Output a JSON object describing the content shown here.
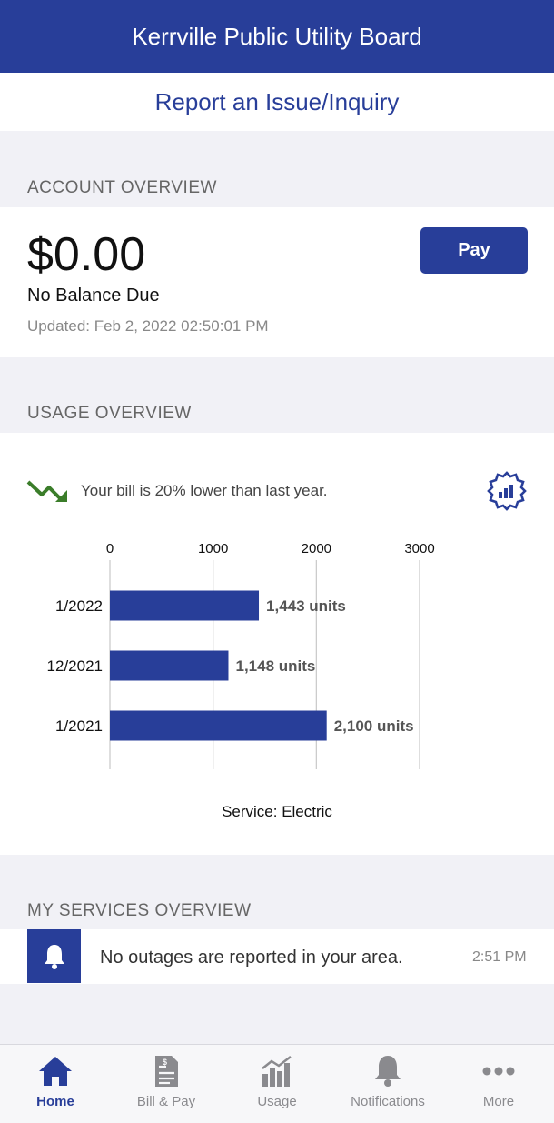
{
  "header": {
    "title": "Kerrville Public Utility Board"
  },
  "report": {
    "label": "Report an Issue/Inquiry"
  },
  "account": {
    "section_title": "ACCOUNT OVERVIEW",
    "amount": "$0.00",
    "balance_label": "No Balance Due",
    "updated": "Updated: Feb 2, 2022 02:50:01 PM",
    "pay_label": "Pay"
  },
  "usage": {
    "section_title": "USAGE OVERVIEW",
    "trend_text": "Your bill is 20% lower than last year.",
    "service_label": "Service: Electric"
  },
  "chart_data": {
    "type": "bar",
    "orientation": "horizontal",
    "categories": [
      "1/2022",
      "12/2021",
      "1/2021"
    ],
    "values": [
      1443,
      1148,
      2100
    ],
    "value_labels": [
      "1,443 units",
      "1,148 units",
      "2,100 units"
    ],
    "x_ticks": [
      "0",
      "1000",
      "2000",
      "3000"
    ],
    "xlim": [
      0,
      3000
    ],
    "grid": true,
    "bar_color": "#283e99"
  },
  "services": {
    "section_title": "MY SERVICES OVERVIEW",
    "message": "No outages are reported in your area.",
    "time": "2:51 PM"
  },
  "tabs": [
    {
      "label": "Home",
      "icon": "home-icon",
      "active": true
    },
    {
      "label": "Bill & Pay",
      "icon": "bill-icon",
      "active": false
    },
    {
      "label": "Usage",
      "icon": "usage-chart-icon",
      "active": false
    },
    {
      "label": "Notifications",
      "icon": "bell-icon",
      "active": false
    },
    {
      "label": "More",
      "icon": "more-icon",
      "active": false
    }
  ],
  "colors": {
    "brand": "#283e99",
    "trend_green": "#3b7d2a",
    "tab_inactive": "#8a8a8e"
  }
}
